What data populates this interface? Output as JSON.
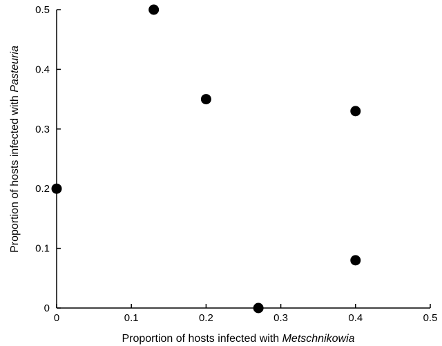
{
  "chart_data": {
    "type": "scatter",
    "xlabel_prefix": "Proportion of hosts infected with ",
    "xlabel_italic": "Metschnikowia",
    "ylabel_prefix": "Proportion of hosts infected with ",
    "ylabel_italic": "Pasteuria",
    "xlim": [
      0,
      0.5
    ],
    "ylim": [
      0,
      0.5
    ],
    "x_ticks": [
      0,
      0.1,
      0.2,
      0.3,
      0.4,
      0.5
    ],
    "y_ticks": [
      0,
      0.1,
      0.2,
      0.3,
      0.4,
      0.5
    ],
    "x_tick_labels": [
      "0",
      "0.1",
      "0.2",
      "0.3",
      "0.4",
      "0.5"
    ],
    "y_tick_labels": [
      "0",
      "0.1",
      "0.2",
      "0.3",
      "0.4",
      "0.5"
    ],
    "grid": false,
    "marker_color": "#000000",
    "points": [
      {
        "x": 0.0,
        "y": 0.2
      },
      {
        "x": 0.13,
        "y": 0.5
      },
      {
        "x": 0.2,
        "y": 0.35
      },
      {
        "x": 0.27,
        "y": 0.0
      },
      {
        "x": 0.4,
        "y": 0.33
      },
      {
        "x": 0.4,
        "y": 0.08
      }
    ]
  }
}
